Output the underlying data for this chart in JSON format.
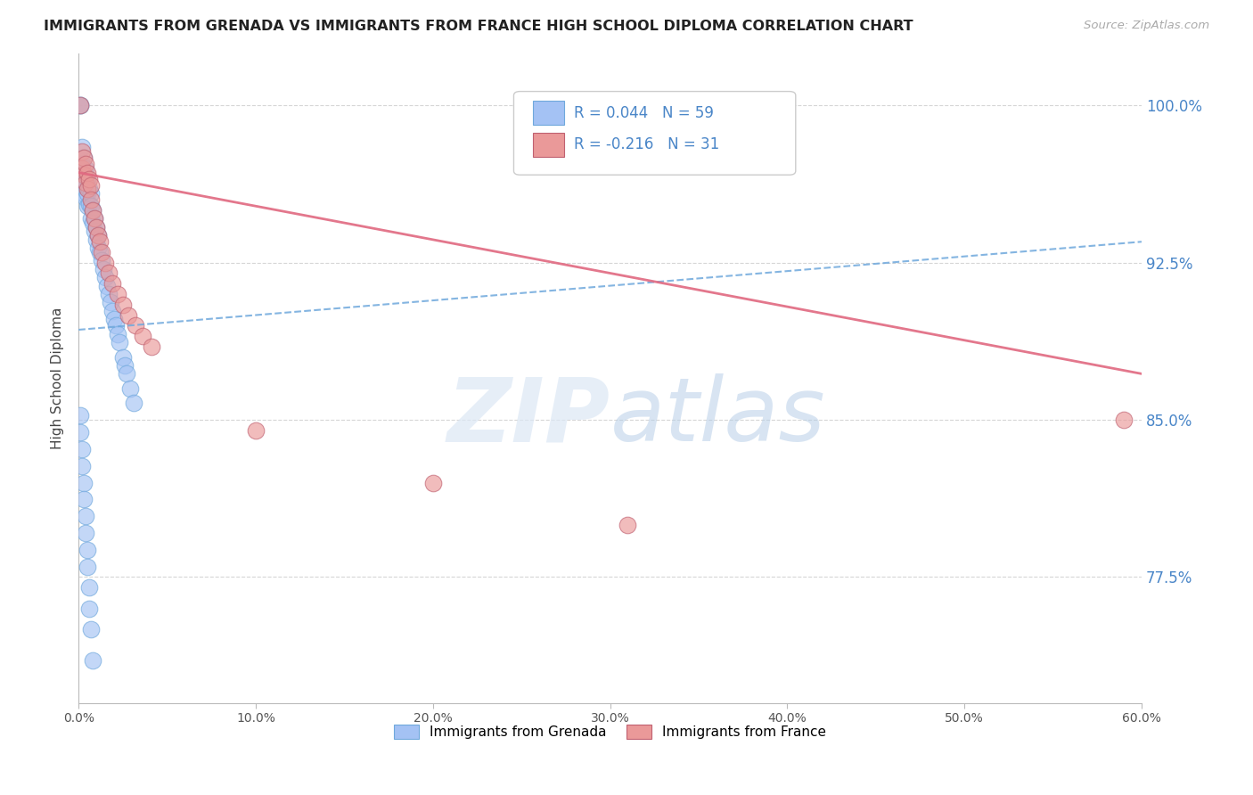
{
  "title": "IMMIGRANTS FROM GRENADA VS IMMIGRANTS FROM FRANCE HIGH SCHOOL DIPLOMA CORRELATION CHART",
  "source": "Source: ZipAtlas.com",
  "ylabel": "High School Diploma",
  "ytick_labels": [
    "100.0%",
    "92.5%",
    "85.0%",
    "77.5%"
  ],
  "ytick_values": [
    1.0,
    0.925,
    0.85,
    0.775
  ],
  "x_min": 0.0,
  "x_max": 0.6,
  "y_min": 0.715,
  "y_max": 1.025,
  "legend_r1": "R = 0.044",
  "legend_n1": "N = 59",
  "legend_r2": "R = -0.216",
  "legend_n2": "N = 31",
  "label1": "Immigrants from Grenada",
  "label2": "Immigrants from France",
  "color1": "#a4c2f4",
  "color2": "#ea9999",
  "trendline1_color": "#6fa8dc",
  "trendline2_color": "#e06880",
  "watermark_zip": "ZIP",
  "watermark_atlas": "atlas",
  "grenada_x": [
    0.001,
    0.001,
    0.002,
    0.002,
    0.002,
    0.003,
    0.003,
    0.003,
    0.003,
    0.004,
    0.004,
    0.004,
    0.005,
    0.005,
    0.005,
    0.006,
    0.006,
    0.007,
    0.007,
    0.007,
    0.008,
    0.008,
    0.009,
    0.009,
    0.01,
    0.01,
    0.011,
    0.011,
    0.012,
    0.013,
    0.014,
    0.015,
    0.016,
    0.017,
    0.018,
    0.019,
    0.02,
    0.021,
    0.022,
    0.023,
    0.025,
    0.026,
    0.027,
    0.029,
    0.031,
    0.001,
    0.001,
    0.002,
    0.002,
    0.003,
    0.003,
    0.004,
    0.004,
    0.005,
    0.005,
    0.006,
    0.006,
    0.007,
    0.008
  ],
  "grenada_y": [
    1.0,
    1.0,
    0.98,
    0.972,
    0.965,
    0.975,
    0.968,
    0.963,
    0.958,
    0.97,
    0.963,
    0.956,
    0.965,
    0.958,
    0.952,
    0.96,
    0.953,
    0.958,
    0.952,
    0.946,
    0.95,
    0.944,
    0.946,
    0.94,
    0.942,
    0.936,
    0.938,
    0.932,
    0.93,
    0.926,
    0.922,
    0.918,
    0.914,
    0.91,
    0.906,
    0.902,
    0.898,
    0.895,
    0.891,
    0.887,
    0.88,
    0.876,
    0.872,
    0.865,
    0.858,
    0.852,
    0.844,
    0.836,
    0.828,
    0.82,
    0.812,
    0.804,
    0.796,
    0.788,
    0.78,
    0.77,
    0.76,
    0.75,
    0.735
  ],
  "france_x": [
    0.001,
    0.002,
    0.002,
    0.003,
    0.003,
    0.004,
    0.004,
    0.005,
    0.005,
    0.006,
    0.007,
    0.007,
    0.008,
    0.009,
    0.01,
    0.011,
    0.012,
    0.013,
    0.015,
    0.017,
    0.019,
    0.022,
    0.025,
    0.028,
    0.032,
    0.036,
    0.041,
    0.1,
    0.2,
    0.31,
    0.59
  ],
  "france_y": [
    1.0,
    0.978,
    0.97,
    0.975,
    0.967,
    0.972,
    0.963,
    0.968,
    0.96,
    0.965,
    0.962,
    0.955,
    0.95,
    0.946,
    0.942,
    0.938,
    0.935,
    0.93,
    0.925,
    0.92,
    0.915,
    0.91,
    0.905,
    0.9,
    0.895,
    0.89,
    0.885,
    0.845,
    0.82,
    0.8,
    0.85
  ]
}
